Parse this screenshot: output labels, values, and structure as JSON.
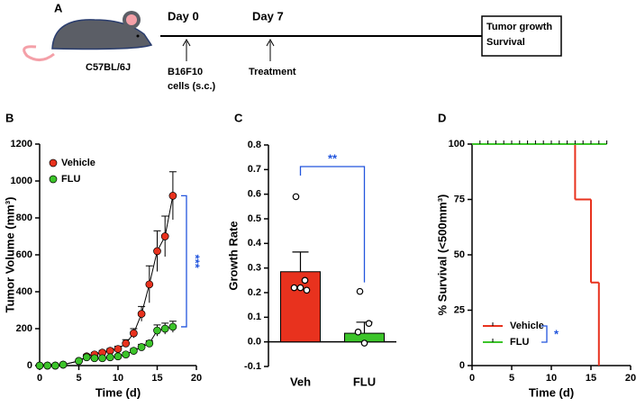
{
  "panel_a": {
    "panel": "A",
    "strain": "C57BL/6J",
    "events": [
      {
        "day": "Day 0",
        "note": [
          "B16F10",
          "cells (s.c.)"
        ]
      },
      {
        "day": "Day 7",
        "note": [
          "Treatment"
        ]
      }
    ],
    "outcome": [
      "Tumor growth",
      "Survival"
    ]
  },
  "chart_data": [
    {
      "type": "line",
      "panel": "B",
      "xlabel": "Time (d)",
      "ylabel": "Tumor Volume (mm³)",
      "x": [
        0,
        1,
        2,
        3,
        5,
        6,
        7,
        8,
        9,
        10,
        11,
        12,
        13,
        14,
        15,
        16,
        17
      ],
      "series": [
        {
          "name": "Vehicle",
          "color": "#e8321e",
          "values": [
            0,
            0,
            0,
            5,
            25,
            50,
            60,
            70,
            80,
            90,
            120,
            175,
            280,
            440,
            620,
            700,
            920
          ],
          "errors": [
            0,
            0,
            0,
            3,
            8,
            10,
            10,
            12,
            12,
            15,
            20,
            25,
            40,
            100,
            110,
            110,
            130
          ]
        },
        {
          "name": "FLU",
          "color": "#3cc42a",
          "values": [
            0,
            0,
            0,
            5,
            25,
            45,
            40,
            40,
            45,
            50,
            60,
            80,
            100,
            120,
            190,
            200,
            210
          ],
          "errors": [
            0,
            0,
            0,
            3,
            6,
            8,
            8,
            8,
            8,
            10,
            10,
            12,
            15,
            15,
            30,
            30,
            30
          ]
        }
      ],
      "xlim": [
        0,
        20
      ],
      "xticks": [
        0,
        5,
        10,
        15,
        20
      ],
      "ylim": [
        0,
        1200
      ],
      "yticks": [
        0,
        200,
        400,
        600,
        800,
        1000,
        1200
      ],
      "annotation": "***"
    },
    {
      "type": "bar",
      "panel": "C",
      "ylabel": "Growth Rate",
      "categories": [
        "Veh",
        "FLU"
      ],
      "values": [
        0.285,
        0.035
      ],
      "errors": [
        0.08,
        0.045
      ],
      "colors": [
        "#e8321e",
        "#3cc42a"
      ],
      "points": [
        [
          0.59,
          0.25,
          0.22,
          0.22,
          0.21
        ],
        [
          0.205,
          0.075,
          0.04,
          -0.005
        ]
      ],
      "ylim": [
        -0.1,
        0.8
      ],
      "yticks": [
        -0.1,
        {
          "value": 0,
          "label": "0.0"
        },
        0.1,
        0.2,
        0.3,
        0.4,
        0.5,
        0.6,
        0.7,
        0.8
      ],
      "annotation": "**"
    },
    {
      "type": "step",
      "panel": "D",
      "xlabel": "Time (d)",
      "ylabel": "% Survival (<500mm³)",
      "series": [
        {
          "name": "Vehicle",
          "color": "#e8321e",
          "x": [
            0,
            13,
            15,
            16
          ],
          "values": [
            100,
            75,
            37.5,
            0
          ]
        },
        {
          "name": "FLU",
          "color": "#3cc42a",
          "x": [
            0,
            17
          ],
          "values": [
            100,
            100
          ],
          "censor_x": [
            1,
            2,
            3,
            4,
            5,
            6,
            7,
            8,
            9,
            10,
            11,
            12,
            13,
            14,
            15,
            16,
            17
          ]
        }
      ],
      "xlim": [
        0,
        20
      ],
      "xticks": [
        0,
        5,
        10,
        15,
        20
      ],
      "ylim": [
        0,
        100
      ],
      "yticks": [
        0,
        25,
        50,
        75,
        100
      ],
      "annotation": "*"
    }
  ]
}
